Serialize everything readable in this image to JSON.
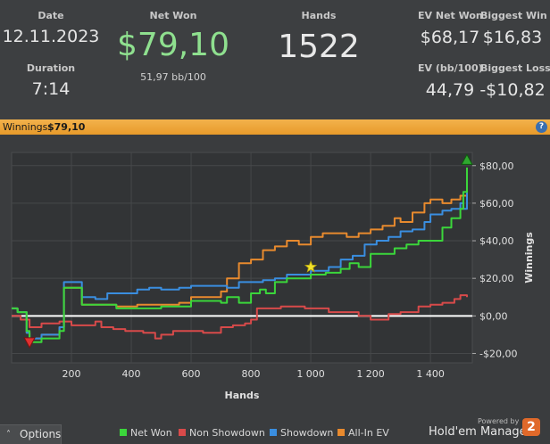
{
  "summary": {
    "date": {
      "label": "Date",
      "value": "12.11.2023"
    },
    "duration": {
      "label": "Duration",
      "value": "7:14"
    },
    "net_won": {
      "label": "Net Won",
      "value": "$79,10",
      "sub": "51,97 bb/100"
    },
    "hands": {
      "label": "Hands",
      "value": "1522"
    },
    "ev_net_won": {
      "label": "EV Net Won",
      "value": "$68,17"
    },
    "biggest_win": {
      "label": "Biggest Win",
      "value": "$16,83"
    },
    "ev_bb100": {
      "label": "EV (bb/100)",
      "value": "44,79"
    },
    "biggest_loss": {
      "label": "Biggest Loss",
      "value": "-$10,82"
    }
  },
  "winbar": {
    "label": "Winnings:",
    "value": "$79,10",
    "help": "?"
  },
  "options": {
    "label": "Options",
    "icon": "chevron-up-icon"
  },
  "branding": {
    "powered": "Powered by",
    "name": "Hold'em Manager",
    "badge": "2"
  },
  "colors": {
    "net_won": "#3bd63b",
    "non_showdown": "#d84a4a",
    "showdown": "#3a8ee0",
    "all_in_ev": "#e88a2e",
    "header_green": "#8fe08f",
    "bar": "#e9a33a"
  },
  "chart_data": {
    "type": "line",
    "xlabel": "Hands",
    "ylabel": "Winnings",
    "xlim": [
      0,
      1540
    ],
    "ylim": [
      -25,
      87
    ],
    "x_ticks": [
      {
        "v": 200,
        "t": "200"
      },
      {
        "v": 400,
        "t": "400"
      },
      {
        "v": 600,
        "t": "600"
      },
      {
        "v": 800,
        "t": "800"
      },
      {
        "v": 1000,
        "t": "1 000"
      },
      {
        "v": 1200,
        "t": "1 200"
      },
      {
        "v": 1400,
        "t": "1 400"
      }
    ],
    "y_ticks": [
      {
        "v": 80,
        "t": "$80,00"
      },
      {
        "v": 60,
        "t": "$60,00"
      },
      {
        "v": 40,
        "t": "$40,00"
      },
      {
        "v": 20,
        "t": "$20,00"
      },
      {
        "v": 0,
        "t": "$0,00"
      },
      {
        "v": -20,
        "t": "-$20,00"
      }
    ],
    "grid": true,
    "legend_position": "bottom",
    "series": [
      {
        "name": "Net Won",
        "color": "#3bd63b",
        "points": [
          [
            0,
            4
          ],
          [
            20,
            2
          ],
          [
            50,
            -8
          ],
          [
            60,
            -14
          ],
          [
            100,
            -12
          ],
          [
            160,
            -8
          ],
          [
            170,
            -8
          ],
          [
            175,
            15
          ],
          [
            230,
            15
          ],
          [
            235,
            6
          ],
          [
            300,
            6
          ],
          [
            350,
            4
          ],
          [
            420,
            4
          ],
          [
            500,
            5
          ],
          [
            560,
            5
          ],
          [
            600,
            8
          ],
          [
            660,
            8
          ],
          [
            700,
            7
          ],
          [
            720,
            10
          ],
          [
            760,
            7
          ],
          [
            800,
            12
          ],
          [
            830,
            14
          ],
          [
            850,
            12
          ],
          [
            880,
            18
          ],
          [
            920,
            20
          ],
          [
            960,
            20
          ],
          [
            1000,
            22
          ],
          [
            1050,
            23
          ],
          [
            1100,
            25
          ],
          [
            1130,
            28
          ],
          [
            1160,
            26
          ],
          [
            1200,
            33
          ],
          [
            1240,
            33
          ],
          [
            1280,
            36
          ],
          [
            1320,
            38
          ],
          [
            1360,
            40
          ],
          [
            1400,
            40
          ],
          [
            1440,
            47
          ],
          [
            1470,
            52
          ],
          [
            1500,
            57
          ],
          [
            1510,
            66
          ],
          [
            1522,
            79
          ]
        ]
      },
      {
        "name": "Non Showdown",
        "color": "#d84a4a",
        "points": [
          [
            0,
            0
          ],
          [
            30,
            -2
          ],
          [
            60,
            -6
          ],
          [
            100,
            -4
          ],
          [
            160,
            -3
          ],
          [
            200,
            -5
          ],
          [
            240,
            -5
          ],
          [
            280,
            -3
          ],
          [
            300,
            -6
          ],
          [
            340,
            -7
          ],
          [
            380,
            -8
          ],
          [
            440,
            -9
          ],
          [
            480,
            -12
          ],
          [
            500,
            -10
          ],
          [
            540,
            -8
          ],
          [
            600,
            -8
          ],
          [
            640,
            -9
          ],
          [
            700,
            -6
          ],
          [
            740,
            -5
          ],
          [
            780,
            -4
          ],
          [
            800,
            -2
          ],
          [
            820,
            4
          ],
          [
            860,
            4
          ],
          [
            900,
            5
          ],
          [
            940,
            5
          ],
          [
            980,
            4
          ],
          [
            1020,
            4
          ],
          [
            1060,
            2
          ],
          [
            1100,
            2
          ],
          [
            1160,
            0
          ],
          [
            1200,
            -2
          ],
          [
            1260,
            1
          ],
          [
            1300,
            2
          ],
          [
            1360,
            5
          ],
          [
            1400,
            6
          ],
          [
            1440,
            7
          ],
          [
            1480,
            9
          ],
          [
            1500,
            11
          ],
          [
            1522,
            10
          ]
        ]
      },
      {
        "name": "Showdown",
        "color": "#3a8ee0",
        "points": [
          [
            0,
            4
          ],
          [
            20,
            2
          ],
          [
            50,
            -9
          ],
          [
            60,
            -12
          ],
          [
            100,
            -10
          ],
          [
            160,
            -6
          ],
          [
            170,
            -6
          ],
          [
            175,
            18
          ],
          [
            230,
            18
          ],
          [
            235,
            10
          ],
          [
            280,
            9
          ],
          [
            320,
            12
          ],
          [
            360,
            12
          ],
          [
            420,
            14
          ],
          [
            460,
            15
          ],
          [
            500,
            14
          ],
          [
            560,
            15
          ],
          [
            600,
            16
          ],
          [
            660,
            16
          ],
          [
            720,
            15
          ],
          [
            760,
            18
          ],
          [
            800,
            18
          ],
          [
            840,
            19
          ],
          [
            880,
            20
          ],
          [
            920,
            22
          ],
          [
            960,
            22
          ],
          [
            1000,
            24
          ],
          [
            1060,
            26
          ],
          [
            1100,
            30
          ],
          [
            1140,
            32
          ],
          [
            1180,
            38
          ],
          [
            1220,
            40
          ],
          [
            1260,
            42
          ],
          [
            1300,
            45
          ],
          [
            1340,
            46
          ],
          [
            1380,
            50
          ],
          [
            1400,
            54
          ],
          [
            1440,
            56
          ],
          [
            1470,
            57
          ],
          [
            1500,
            60
          ],
          [
            1510,
            57
          ],
          [
            1522,
            68
          ]
        ]
      },
      {
        "name": "All-In EV",
        "color": "#e88a2e",
        "points": [
          [
            0,
            4
          ],
          [
            20,
            2
          ],
          [
            50,
            -9
          ],
          [
            60,
            -12
          ],
          [
            100,
            -10
          ],
          [
            160,
            -6
          ],
          [
            170,
            -6
          ],
          [
            175,
            15
          ],
          [
            230,
            15
          ],
          [
            235,
            6
          ],
          [
            300,
            6
          ],
          [
            350,
            5
          ],
          [
            420,
            6
          ],
          [
            500,
            6
          ],
          [
            560,
            7
          ],
          [
            600,
            10
          ],
          [
            660,
            10
          ],
          [
            700,
            13
          ],
          [
            720,
            20
          ],
          [
            760,
            28
          ],
          [
            800,
            30
          ],
          [
            840,
            35
          ],
          [
            880,
            37
          ],
          [
            920,
            40
          ],
          [
            960,
            38
          ],
          [
            1000,
            42
          ],
          [
            1040,
            44
          ],
          [
            1080,
            44
          ],
          [
            1120,
            42
          ],
          [
            1160,
            44
          ],
          [
            1200,
            46
          ],
          [
            1240,
            48
          ],
          [
            1280,
            52
          ],
          [
            1300,
            50
          ],
          [
            1340,
            55
          ],
          [
            1380,
            60
          ],
          [
            1400,
            62
          ],
          [
            1440,
            60
          ],
          [
            1470,
            62
          ],
          [
            1500,
            64
          ],
          [
            1522,
            70
          ]
        ]
      }
    ],
    "markers": [
      {
        "type": "triangle-down",
        "color": "#e03030",
        "x": 60,
        "y": -14
      },
      {
        "type": "star",
        "color": "#f2e22a",
        "x": 1000,
        "y": 26
      },
      {
        "type": "triangle-up",
        "color": "#2fa82f",
        "x": 1522,
        "y": 83
      }
    ]
  }
}
